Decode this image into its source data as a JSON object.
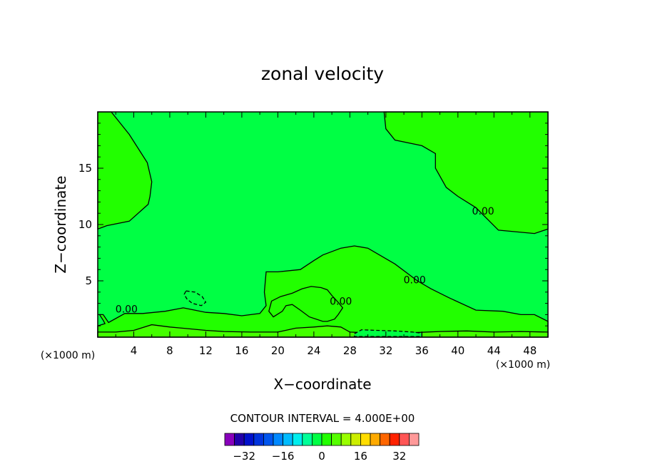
{
  "chart_data": {
    "type": "contour",
    "title": "zonal velocity",
    "xlabel": "X−coordinate",
    "ylabel": "Z−coordinate",
    "x_unit_left": "(×1000 m)",
    "x_unit_right": "(×1000 m)",
    "xlim": [
      0,
      50
    ],
    "ylim": [
      0,
      20
    ],
    "x_ticks": [
      {
        "value": 4,
        "label": "4"
      },
      {
        "value": 8,
        "label": "8"
      },
      {
        "value": 12,
        "label": "12"
      },
      {
        "value": 16,
        "label": "16"
      },
      {
        "value": 20,
        "label": "20"
      },
      {
        "value": 24,
        "label": "24"
      },
      {
        "value": 28,
        "label": "28"
      },
      {
        "value": 32,
        "label": "32"
      },
      {
        "value": 36,
        "label": "36"
      },
      {
        "value": 40,
        "label": "40"
      },
      {
        "value": 44,
        "label": "44"
      },
      {
        "value": 48,
        "label": "48"
      }
    ],
    "y_ticks": [
      {
        "value": 5,
        "label": "5"
      },
      {
        "value": 10,
        "label": "10"
      },
      {
        "value": 15,
        "label": "15"
      }
    ],
    "contour_interval_text": "CONTOUR INTERVAL = 4.000E+00",
    "contour_labels": [
      {
        "text": "0.00",
        "x": 3.2,
        "z": 2.5
      },
      {
        "text": "0.00",
        "x": 42.8,
        "z": 11.2
      },
      {
        "text": "0.00",
        "x": 35.2,
        "z": 5.1
      },
      {
        "text": "0.00",
        "x": 27.0,
        "z": 3.2
      }
    ],
    "regions": [
      {
        "level": 0,
        "color": "#22ff00",
        "points": [
          [
            0,
            20
          ],
          [
            1.5,
            20
          ],
          [
            3.5,
            18
          ],
          [
            5.5,
            15.5
          ],
          [
            6,
            13.8
          ],
          [
            5.8,
            12.5
          ],
          [
            5.6,
            11.8
          ],
          [
            3.5,
            10.3
          ],
          [
            1,
            9.9
          ],
          [
            0,
            9.6
          ]
        ]
      },
      {
        "level": 0,
        "color": "#22ff00",
        "points": [
          [
            31.8,
            20
          ],
          [
            50,
            20
          ],
          [
            50,
            9.6
          ],
          [
            48.5,
            9.2
          ],
          [
            44.5,
            9.5
          ],
          [
            42,
            11.5
          ],
          [
            40,
            12.5
          ],
          [
            38.7,
            13.3
          ],
          [
            37.5,
            15
          ],
          [
            37.5,
            16.3
          ],
          [
            36,
            17
          ],
          [
            33,
            17.5
          ],
          [
            32,
            18.5
          ]
        ]
      },
      {
        "level": 0,
        "color": "#22ff00",
        "points": [
          [
            18.7,
            5.8
          ],
          [
            20,
            5.8
          ],
          [
            22.5,
            6
          ],
          [
            24,
            6.8
          ],
          [
            25,
            7.3
          ],
          [
            27,
            7.9
          ],
          [
            28.5,
            8.1
          ],
          [
            30,
            7.9
          ],
          [
            33,
            6.5
          ],
          [
            35.5,
            5
          ],
          [
            37,
            4.3
          ],
          [
            39,
            3.5
          ],
          [
            42,
            2.4
          ],
          [
            45,
            2.3
          ],
          [
            47,
            2
          ],
          [
            48.5,
            2
          ],
          [
            50,
            1.4
          ],
          [
            50,
            0
          ],
          [
            0,
            0
          ],
          [
            0,
            1
          ],
          [
            0.8,
            1.2
          ],
          [
            0.6,
            1.5
          ],
          [
            0.2,
            2
          ],
          [
            0.6,
            2
          ],
          [
            1.2,
            1.3
          ],
          [
            3,
            2.1
          ],
          [
            5,
            2.1
          ],
          [
            7.5,
            2.3
          ],
          [
            9.5,
            2.6
          ],
          [
            12,
            2.2
          ],
          [
            14,
            2.1
          ],
          [
            16,
            1.9
          ],
          [
            18,
            2.1
          ],
          [
            18.7,
            2.8
          ],
          [
            18.5,
            4
          ]
        ]
      },
      {
        "level": 4,
        "color": "#44ff00",
        "points": [
          [
            0,
            0
          ],
          [
            50,
            0
          ],
          [
            50,
            0.45
          ],
          [
            47,
            0.5
          ],
          [
            44,
            0.45
          ],
          [
            41,
            0.55
          ],
          [
            38,
            0.5
          ],
          [
            35,
            0.4
          ],
          [
            31,
            0.35
          ],
          [
            28,
            0.45
          ],
          [
            27,
            0.9
          ],
          [
            25.5,
            1
          ],
          [
            24,
            0.9
          ],
          [
            22,
            0.8
          ],
          [
            20,
            0.45
          ],
          [
            17,
            0.45
          ],
          [
            14,
            0.5
          ],
          [
            12,
            0.6
          ],
          [
            10,
            0.75
          ],
          [
            8,
            0.9
          ],
          [
            6,
            1.1
          ],
          [
            4,
            0.6
          ],
          [
            2,
            0.45
          ],
          [
            0,
            0.45
          ]
        ]
      },
      {
        "level": 0,
        "color": "#22ff00",
        "points": [
          [
            25.5,
            4.2
          ],
          [
            26,
            3.7
          ],
          [
            26.8,
            3
          ],
          [
            27.2,
            2.6
          ],
          [
            26.7,
            2
          ],
          [
            26.3,
            1.6
          ],
          [
            25.5,
            1.4
          ],
          [
            25,
            1.4
          ],
          [
            23.5,
            1.8
          ],
          [
            22.5,
            2.4
          ],
          [
            21.6,
            2.9
          ],
          [
            20.9,
            2.8
          ],
          [
            20.5,
            2.3
          ],
          [
            19.5,
            1.8
          ],
          [
            19,
            2.3
          ],
          [
            19.3,
            3.2
          ],
          [
            20.3,
            3.6
          ],
          [
            21.6,
            3.9
          ],
          [
            22.7,
            4.3
          ],
          [
            23.7,
            4.5
          ],
          [
            24.8,
            4.4
          ]
        ]
      },
      {
        "level": -4,
        "color": "#00ff44",
        "points": [
          [
            9.8,
            4.1
          ],
          [
            10.8,
            4
          ],
          [
            11.6,
            3.6
          ],
          [
            12,
            3.1
          ],
          [
            11.5,
            2.8
          ],
          [
            10.5,
            3
          ],
          [
            9.9,
            3.4
          ],
          [
            9.6,
            3.8
          ]
        ]
      },
      {
        "level": -4,
        "color": "#00ff44",
        "points": [
          [
            28.5,
            0.3
          ],
          [
            29.3,
            0.65
          ],
          [
            31,
            0.6
          ],
          [
            33,
            0.55
          ],
          [
            35,
            0.45
          ],
          [
            36,
            0.35
          ],
          [
            36,
            0.05
          ],
          [
            28.5,
            0.05
          ]
        ]
      }
    ],
    "colorbar": {
      "colors": [
        "#8800bb",
        "#2200aa",
        "#0011cc",
        "#0033dd",
        "#0055ee",
        "#0088ff",
        "#00bbff",
        "#00eeee",
        "#00ff99",
        "#00ff44",
        "#22ff00",
        "#55ff00",
        "#99ff00",
        "#ccee00",
        "#ffdd00",
        "#ffaa00",
        "#ff6600",
        "#ff2200",
        "#ff5555",
        "#ff9999"
      ],
      "tick_labels": [
        "−32",
        "−16",
        "0",
        "16",
        "32"
      ]
    }
  }
}
